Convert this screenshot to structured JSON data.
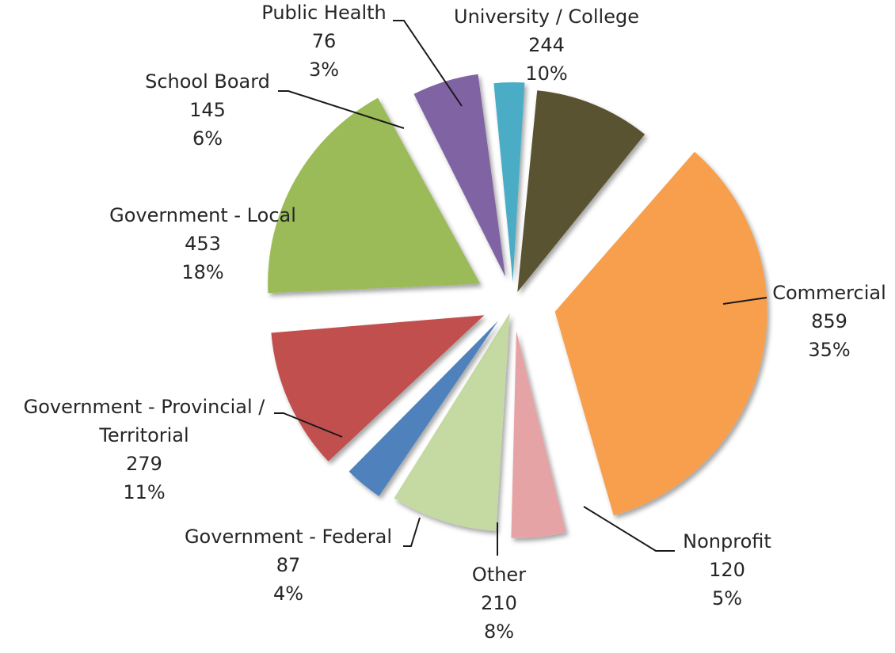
{
  "chart_data": {
    "type": "pie",
    "title": "",
    "exploded": true,
    "shadow": true,
    "slices": [
      {
        "name": "Commercial",
        "value": 859,
        "percent": "35%",
        "color": "#F79F4E",
        "label_lines": [
          "Commercial",
          "859",
          "35%"
        ]
      },
      {
        "name": "Nonprofit",
        "value": 120,
        "percent": "5%",
        "color": "#E6A3A6",
        "label_lines": [
          "Nonprofit",
          "120",
          "5%"
        ]
      },
      {
        "name": "Other",
        "value": 210,
        "percent": "8%",
        "color": "#C5D9A3",
        "label_lines": [
          "Other",
          "210",
          "8%"
        ]
      },
      {
        "name": "Government  - Federal",
        "value": 87,
        "percent": "4%",
        "color": "#4F81BD",
        "label_lines": [
          "Government  - Federal",
          "87",
          "4%"
        ]
      },
      {
        "name": "Government - Provincial / Territorial",
        "value": 279,
        "percent": "11%",
        "color": "#C0504D",
        "label_lines": [
          "Government - Provincial /",
          "Territorial",
          "279",
          "11%"
        ]
      },
      {
        "name": "Government - Local",
        "value": 453,
        "percent": "18%",
        "color": "#9BBB59",
        "label_lines": [
          "Government - Local",
          "453",
          "18%"
        ]
      },
      {
        "name": "School Board",
        "value": 145,
        "percent": "6%",
        "color": "#8064A2",
        "label_lines": [
          "School Board",
          "145",
          "6%"
        ]
      },
      {
        "name": "Public Health",
        "value": 76,
        "percent": "3%",
        "color": "#4BACC6",
        "label_lines": [
          "Public Health",
          "76",
          "3%"
        ]
      },
      {
        "name": "University / College",
        "value": 244,
        "percent": "10%",
        "color": "#5A5232",
        "label_lines": [
          "University / College",
          "244",
          "10%"
        ]
      }
    ]
  }
}
